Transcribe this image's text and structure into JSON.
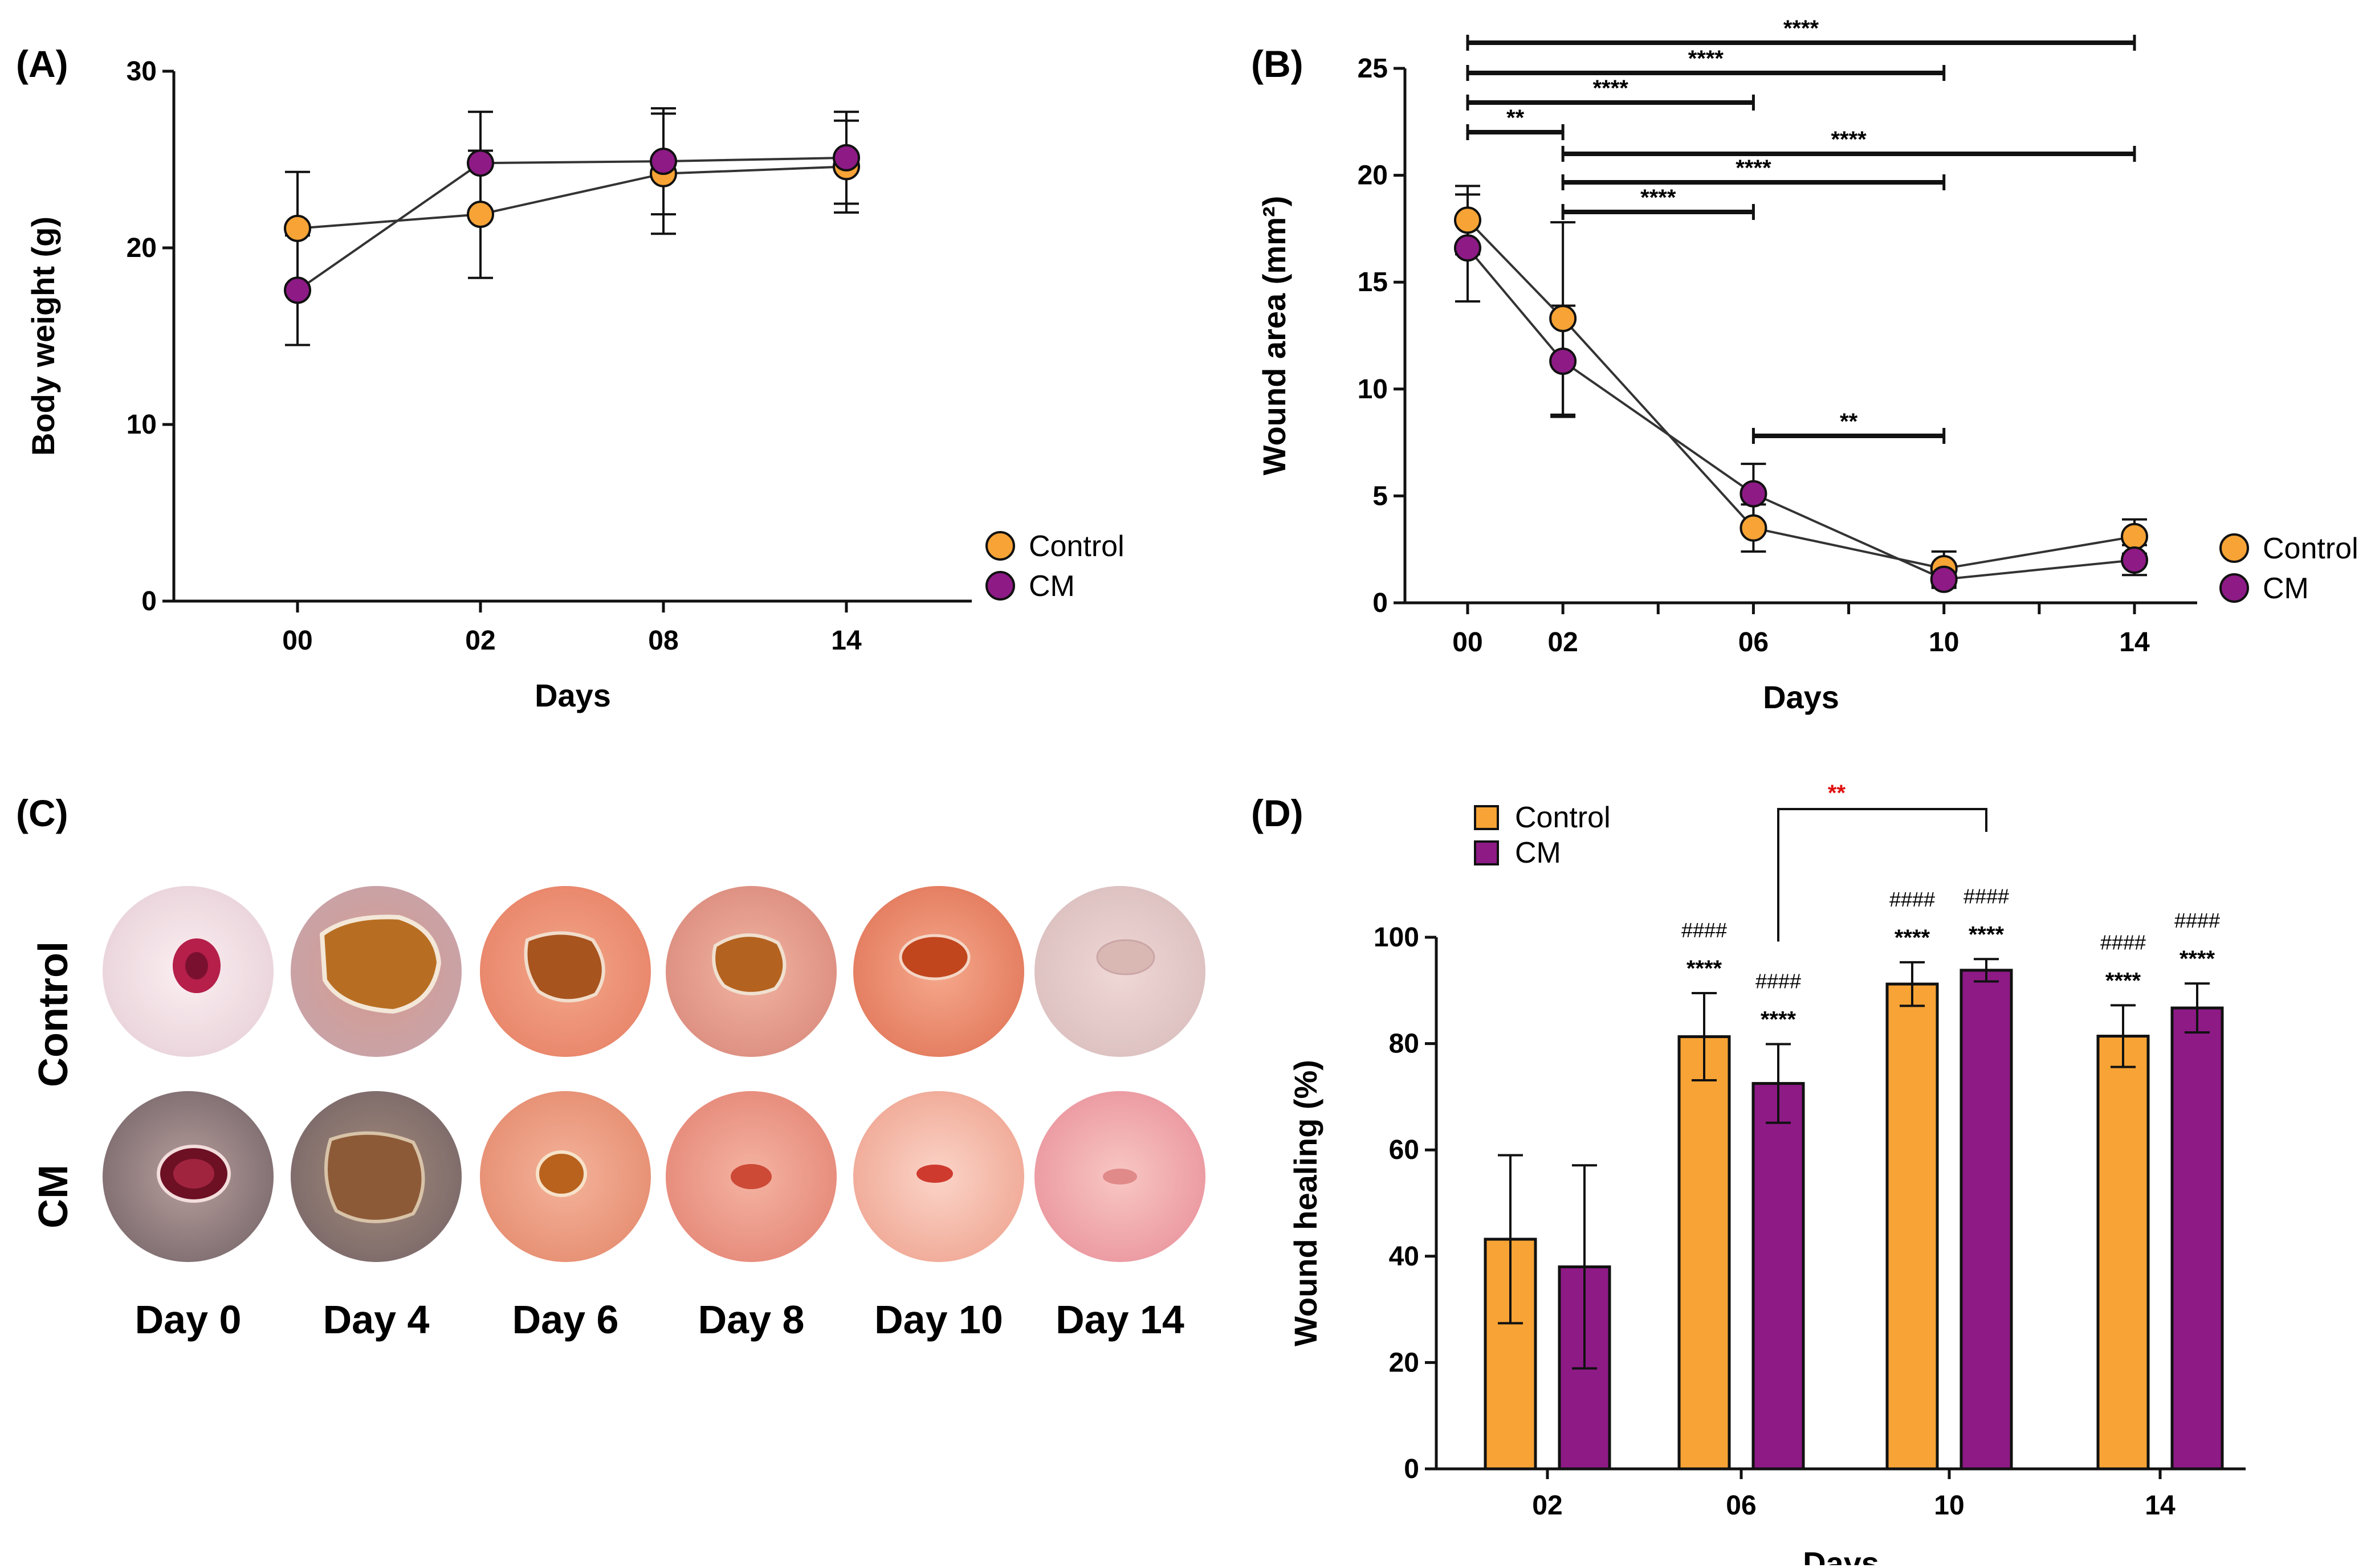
{
  "colors": {
    "control": "#f7a335",
    "cm": "#8e1a86",
    "axis": "#111111",
    "red_sig": "#e01010"
  },
  "panel_labels": [
    "(A)",
    "(B)",
    "(C)",
    "(D)"
  ],
  "chart_data": [
    {
      "id": "A",
      "type": "line",
      "title": "",
      "xlabel": "Days",
      "ylabel": "Body weight (g)",
      "categories": [
        "00",
        "02",
        "08",
        "14"
      ],
      "ylim": [
        0,
        30
      ],
      "yticks": [
        0,
        10,
        20,
        30
      ],
      "legend_position": "bottom-right",
      "series": [
        {
          "name": "Control",
          "values": [
            21.1,
            21.9,
            24.2,
            24.6
          ],
          "errors": [
            3.2,
            3.6,
            3.4,
            2.6
          ]
        },
        {
          "name": "CM",
          "values": [
            17.6,
            24.8,
            24.9,
            25.1
          ],
          "errors": [
            3.1,
            2.9,
            3.0,
            2.6
          ]
        }
      ]
    },
    {
      "id": "B",
      "type": "line",
      "title": "",
      "xlabel": "Days",
      "ylabel": "Wound area (mm²)",
      "x": [
        0,
        2,
        6,
        10,
        14
      ],
      "tick_labels": [
        "00",
        "02",
        "06",
        "10",
        "14"
      ],
      "ylim": [
        0,
        25
      ],
      "yticks": [
        0,
        5,
        10,
        15,
        20,
        25
      ],
      "legend_position": "right",
      "series": [
        {
          "name": "Control",
          "values": [
            17.9,
            13.3,
            3.5,
            1.6,
            3.1
          ],
          "errors": [
            1.6,
            4.5,
            1.1,
            0.8,
            0.8
          ]
        },
        {
          "name": "CM",
          "values": [
            16.6,
            11.3,
            5.1,
            1.1,
            2.0
          ],
          "errors": [
            2.5,
            2.6,
            1.4,
            0.4,
            0.7
          ]
        }
      ],
      "significance": [
        {
          "from": 0,
          "to": 14,
          "label": "****"
        },
        {
          "from": 0,
          "to": 10,
          "label": "****"
        },
        {
          "from": 0,
          "to": 6,
          "label": "****"
        },
        {
          "from": 0,
          "to": 2,
          "label": "**"
        },
        {
          "from": 2,
          "to": 14,
          "label": "****"
        },
        {
          "from": 2,
          "to": 10,
          "label": "****"
        },
        {
          "from": 2,
          "to": 6,
          "label": "****"
        },
        {
          "from": 6,
          "to": 10,
          "label": "**"
        }
      ]
    },
    {
      "id": "D",
      "type": "bar",
      "title": "",
      "xlabel": "Days",
      "ylabel": "Wound healing (%)",
      "categories": [
        "02",
        "06",
        "10",
        "14"
      ],
      "ylim": [
        0,
        100
      ],
      "yticks": [
        0,
        20,
        40,
        60,
        80,
        100
      ],
      "legend_position": "top-left",
      "series": [
        {
          "name": "Control",
          "values": [
            43.2,
            81.3,
            91.2,
            81.4
          ],
          "errors": [
            15.8,
            8.2,
            4.1,
            5.8
          ],
          "stars": [
            "",
            "****",
            "****",
            "****"
          ],
          "hashes": [
            "",
            "####",
            "####",
            "####"
          ]
        },
        {
          "name": "CM",
          "values": [
            38.0,
            72.5,
            93.8,
            86.7
          ],
          "errors": [
            19.1,
            7.4,
            2.1,
            4.6
          ],
          "stars": [
            "",
            "****",
            "****",
            "****"
          ],
          "hashes": [
            "",
            "####",
            "####",
            "####"
          ]
        }
      ],
      "bracket": {
        "from_category": "06",
        "from_series": "CM",
        "to_category": "10",
        "to_series": "CM",
        "label": "**"
      }
    }
  ],
  "photo_panel": {
    "rows": [
      "Control",
      "CM"
    ],
    "days": [
      "Day 0",
      "Day 4",
      "Day 6",
      "Day 8",
      "Day 10",
      "Day 14"
    ]
  }
}
